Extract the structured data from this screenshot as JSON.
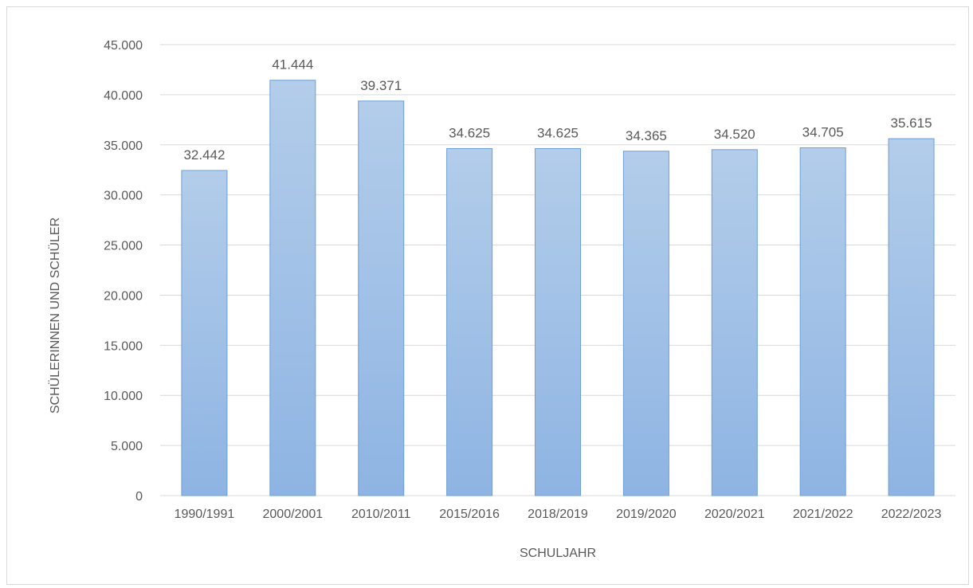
{
  "chart_data": {
    "type": "bar",
    "categories": [
      "1990/1991",
      "2000/2001",
      "2010/2011",
      "2015/2016",
      "2018/2019",
      "2019/2020",
      "2020/2021",
      "2021/2022",
      "2022/2023"
    ],
    "values": [
      32442,
      41444,
      39371,
      34625,
      34625,
      34365,
      34520,
      34705,
      35615
    ],
    "data_labels": [
      "32.442",
      "41.444",
      "39.371",
      "34.625",
      "34.625",
      "34.365",
      "34.520",
      "34.705",
      "35.615"
    ],
    "y_ticks": [
      0,
      5000,
      10000,
      15000,
      20000,
      25000,
      30000,
      35000,
      40000,
      45000
    ],
    "y_tick_labels": [
      "0",
      "5.000",
      "10.000",
      "15.000",
      "20.000",
      "25.000",
      "30.000",
      "35.000",
      "40.000",
      "45.000"
    ],
    "ylim": [
      0,
      45000
    ],
    "xlabel": "SCHULJAHR",
    "ylabel": "SCHÜLERINNEN UND SCHÜLER",
    "grid": true,
    "legend": "none",
    "bar_color_top": "#b3cdea",
    "bar_color_bottom": "#8eb4e3",
    "bar_border": "#6d9fd8",
    "gridline_color": "#d9d9d9",
    "text_color": "#595959"
  }
}
